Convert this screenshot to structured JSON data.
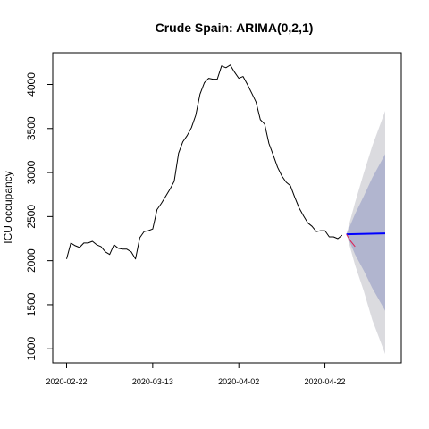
{
  "chart_data": {
    "type": "line",
    "title": "Crude Spain: ARIMA(0,2,1)",
    "xlabel": "",
    "ylabel": "ICU occupancy",
    "x_tick_labels": [
      "2020-02-22",
      "2020-03-13",
      "2020-04-02",
      "2020-04-22"
    ],
    "y_ticks": [
      1000,
      1500,
      2000,
      2500,
      3000,
      3500,
      4000
    ],
    "xlim": [
      "2020-02-22",
      "2020-05-06"
    ],
    "ylim": [
      840,
      4360
    ],
    "grid": false,
    "colors": {
      "observed": "#000000",
      "forecast": "#0000ff",
      "actual": "#dd2255",
      "pi80": "#b1b5cf",
      "pi95": "#dbdbdf"
    },
    "series": [
      {
        "role": "observed",
        "x": [
          "2020-02-22",
          "2020-02-23",
          "2020-02-24",
          "2020-02-25",
          "2020-02-26",
          "2020-02-27",
          "2020-02-28",
          "2020-02-29",
          "2020-03-01",
          "2020-03-02",
          "2020-03-03",
          "2020-03-04",
          "2020-03-05",
          "2020-03-06",
          "2020-03-07",
          "2020-03-08",
          "2020-03-09",
          "2020-03-10",
          "2020-03-11",
          "2020-03-12",
          "2020-03-13",
          "2020-03-14",
          "2020-03-15",
          "2020-03-16",
          "2020-03-17",
          "2020-03-18",
          "2020-03-19",
          "2020-03-20",
          "2020-03-21",
          "2020-03-22",
          "2020-03-23",
          "2020-03-24",
          "2020-03-25",
          "2020-03-26",
          "2020-03-27",
          "2020-03-28",
          "2020-03-29",
          "2020-03-30",
          "2020-03-31",
          "2020-04-01",
          "2020-04-02",
          "2020-04-03",
          "2020-04-04",
          "2020-04-05",
          "2020-04-06",
          "2020-04-07",
          "2020-04-08",
          "2020-04-09",
          "2020-04-10",
          "2020-04-11",
          "2020-04-12",
          "2020-04-13",
          "2020-04-14",
          "2020-04-15",
          "2020-04-16",
          "2020-04-17",
          "2020-04-18",
          "2020-04-19",
          "2020-04-20",
          "2020-04-21",
          "2020-04-22",
          "2020-04-23",
          "2020-04-24",
          "2020-04-25",
          "2020-04-26"
        ],
        "values": [
          2020,
          2200,
          2170,
          2150,
          2200,
          2200,
          2220,
          2180,
          2160,
          2100,
          2070,
          2180,
          2140,
          2130,
          2130,
          2100,
          2020,
          2260,
          2330,
          2340,
          2360,
          2580,
          2650,
          2730,
          2810,
          2900,
          3220,
          3350,
          3420,
          3510,
          3650,
          3890,
          4020,
          4070,
          4060,
          4060,
          4210,
          4190,
          4220,
          4140,
          4070,
          4090,
          4000,
          3900,
          3800,
          3600,
          3550,
          3330,
          3200,
          3060,
          2960,
          2890,
          2850,
          2720,
          2600,
          2510,
          2430,
          2390,
          2330,
          2340,
          2340,
          2270,
          2270,
          2250,
          2290
        ]
      },
      {
        "role": "forecast",
        "x": [
          "2020-04-27",
          "2020-05-06"
        ],
        "values": [
          2300,
          2310
        ]
      },
      {
        "role": "actual",
        "x": [
          "2020-04-27",
          "2020-04-28",
          "2020-04-29"
        ],
        "values": [
          2300,
          2220,
          2160
        ]
      }
    ],
    "intervals": {
      "x": [
        "2020-04-27",
        "2020-04-29",
        "2020-05-01",
        "2020-05-03",
        "2020-05-06"
      ],
      "pi80_upper": [
        2300,
        2530,
        2730,
        2940,
        3210
      ],
      "pi80_lower": [
        2300,
        2070,
        1890,
        1690,
        1430
      ],
      "pi95_upper": [
        2300,
        2660,
        2990,
        3300,
        3700
      ],
      "pi95_lower": [
        2300,
        1950,
        1660,
        1330,
        940
      ]
    }
  }
}
